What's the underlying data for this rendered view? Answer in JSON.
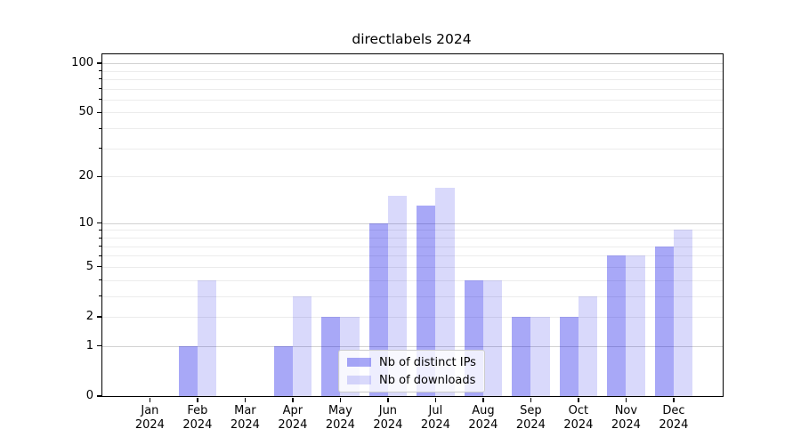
{
  "title": "directlabels 2024",
  "chart_data": {
    "type": "bar",
    "title": "directlabels 2024",
    "categories": [
      "Jan",
      "Feb",
      "Mar",
      "Apr",
      "May",
      "Jun",
      "Jul",
      "Aug",
      "Sep",
      "Oct",
      "Nov",
      "Dec"
    ],
    "year_label": "2024",
    "series": [
      {
        "name": "Nb of distinct IPs",
        "color": "rgba(0,0,232,0.34)",
        "values": [
          0,
          1,
          0,
          1,
          2,
          10,
          13,
          4,
          2,
          2,
          6,
          7
        ]
      },
      {
        "name": "Nb of downloads",
        "color": "rgba(0,0,225,0.15)",
        "values": [
          0,
          4,
          0,
          3,
          2,
          15,
          17,
          4,
          2,
          3,
          6,
          9
        ]
      }
    ],
    "y_axis": {
      "scale": "log1p",
      "labeled_ticks": [
        0,
        1,
        2,
        5,
        10,
        20,
        50,
        100
      ],
      "minor_ticks": [
        3,
        4,
        6,
        7,
        8,
        9,
        30,
        40,
        60,
        70,
        80,
        90
      ],
      "major_gridlines": [
        1,
        10,
        100
      ],
      "ymax": 114
    },
    "x_axis": {
      "tick_labels_two_line": true
    },
    "grid": true,
    "legend": {
      "position": "lower center",
      "entries": [
        "Nb of distinct IPs",
        "Nb of downloads"
      ]
    }
  }
}
